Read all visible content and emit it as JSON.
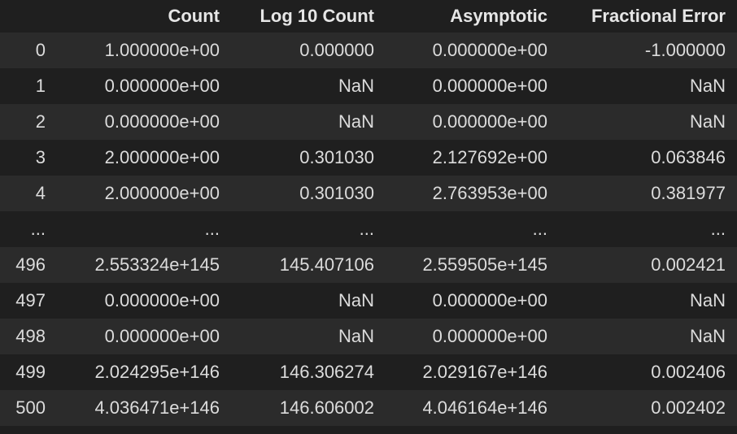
{
  "table": {
    "columns": [
      "",
      "Count",
      "Log 10 Count",
      "Asymptotic",
      "Fractional Error"
    ],
    "rows": [
      [
        "0",
        "1.000000e+00",
        "0.000000",
        "0.000000e+00",
        "-1.000000"
      ],
      [
        "1",
        "0.000000e+00",
        "NaN",
        "0.000000e+00",
        "NaN"
      ],
      [
        "2",
        "0.000000e+00",
        "NaN",
        "0.000000e+00",
        "NaN"
      ],
      [
        "3",
        "2.000000e+00",
        "0.301030",
        "2.127692e+00",
        "0.063846"
      ],
      [
        "4",
        "2.000000e+00",
        "0.301030",
        "2.763953e+00",
        "0.381977"
      ],
      [
        "...",
        "...",
        "...",
        "...",
        "..."
      ],
      [
        "496",
        "2.553324e+145",
        "145.407106",
        "2.559505e+145",
        "0.002421"
      ],
      [
        "497",
        "0.000000e+00",
        "NaN",
        "0.000000e+00",
        "NaN"
      ],
      [
        "498",
        "0.000000e+00",
        "NaN",
        "0.000000e+00",
        "NaN"
      ],
      [
        "499",
        "2.024295e+146",
        "146.306274",
        "2.029167e+146",
        "0.002406"
      ],
      [
        "500",
        "4.036471e+146",
        "146.606002",
        "4.046164e+146",
        "0.002402"
      ]
    ]
  },
  "colors": {
    "background": "#1f1f1f",
    "row_stripe": "#2b2b2b",
    "text": "#dcdcdc"
  }
}
